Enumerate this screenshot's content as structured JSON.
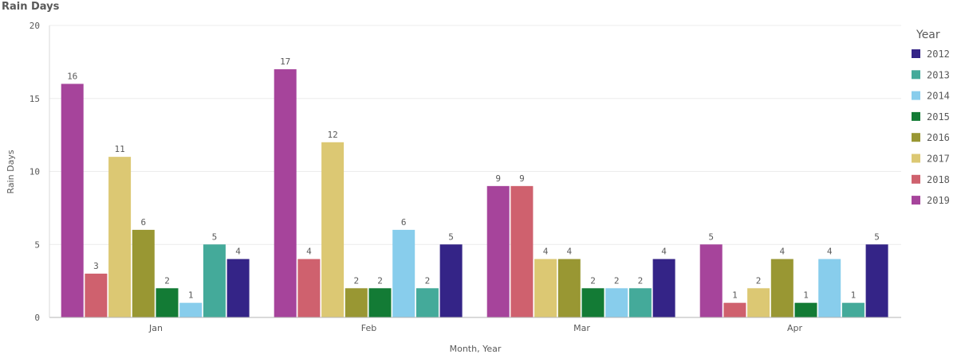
{
  "chart_data": {
    "type": "bar",
    "title": "Rain Days",
    "xlabel": "Month, Year",
    "ylabel": "Rain Days",
    "ylim": [
      0,
      20
    ],
    "yticks": [
      "0",
      "5",
      "10",
      "15",
      "20"
    ],
    "categories": [
      "Jan",
      "Feb",
      "Mar",
      "Apr"
    ],
    "legend_title": "Year",
    "legend_position": "right",
    "grid": true,
    "series": [
      {
        "name": "2019",
        "color": "#a6449b",
        "values": [
          16,
          17,
          9,
          5
        ]
      },
      {
        "name": "2018",
        "color": "#cf616e",
        "values": [
          3,
          4,
          9,
          1
        ]
      },
      {
        "name": "2017",
        "color": "#dcc873",
        "values": [
          11,
          12,
          4,
          2
        ]
      },
      {
        "name": "2016",
        "color": "#999733",
        "values": [
          6,
          2,
          4,
          4
        ]
      },
      {
        "name": "2015",
        "color": "#137b35",
        "values": [
          2,
          2,
          2,
          1
        ]
      },
      {
        "name": "2014",
        "color": "#88cdec",
        "values": [
          1,
          6,
          2,
          4
        ]
      },
      {
        "name": "2013",
        "color": "#44aa9a",
        "values": [
          5,
          2,
          2,
          1
        ]
      },
      {
        "name": "2012",
        "color": "#342487",
        "values": [
          4,
          5,
          4,
          5
        ]
      }
    ]
  }
}
